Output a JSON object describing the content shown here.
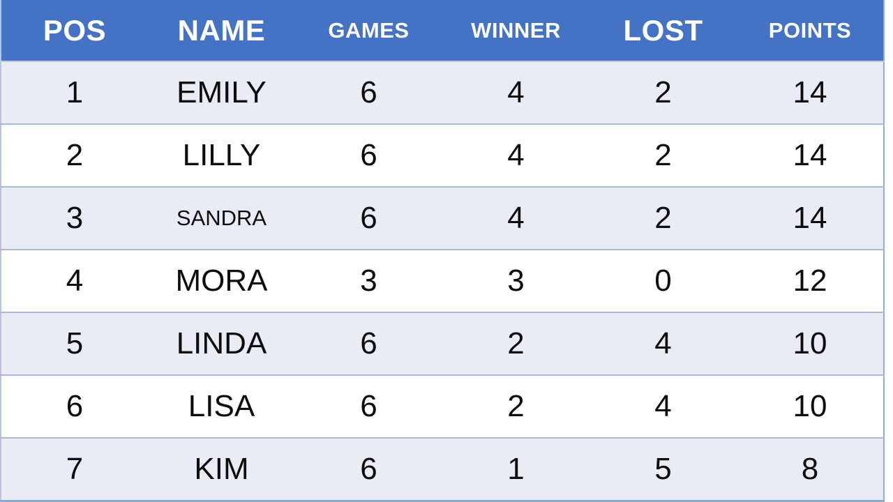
{
  "colors": {
    "header_bg": "#4472c4",
    "header_text": "#ffffff",
    "row_alt_bg": "#e9ebf5",
    "row_plain_bg": "#ffffff",
    "row_divider": "#a9b7d9",
    "outer_border": "#8eaadb",
    "body_text": "#0d0d0d"
  },
  "table": {
    "columns": [
      {
        "label": "POS"
      },
      {
        "label": "NAME"
      },
      {
        "label": "GAMES"
      },
      {
        "label": "WINNER"
      },
      {
        "label": "LOST"
      },
      {
        "label": "POINTS"
      }
    ],
    "rows": [
      {
        "pos": "1",
        "name": "EMILY",
        "games": "6",
        "winner": "4",
        "lost": "2",
        "points": "14"
      },
      {
        "pos": "2",
        "name": "LILLY",
        "games": "6",
        "winner": "4",
        "lost": "2",
        "points": "14"
      },
      {
        "pos": "3",
        "name": "SANDRA",
        "games": "6",
        "winner": "4",
        "lost": "2",
        "points": "14"
      },
      {
        "pos": "4",
        "name": "MORA",
        "games": "3",
        "winner": "3",
        "lost": "0",
        "points": "12"
      },
      {
        "pos": "5",
        "name": "LINDA",
        "games": "6",
        "winner": "2",
        "lost": "4",
        "points": "10"
      },
      {
        "pos": "6",
        "name": "LISA",
        "games": "6",
        "winner": "2",
        "lost": "4",
        "points": "10"
      },
      {
        "pos": "7",
        "name": "KIM",
        "games": "6",
        "winner": "1",
        "lost": "5",
        "points": "8"
      }
    ]
  }
}
